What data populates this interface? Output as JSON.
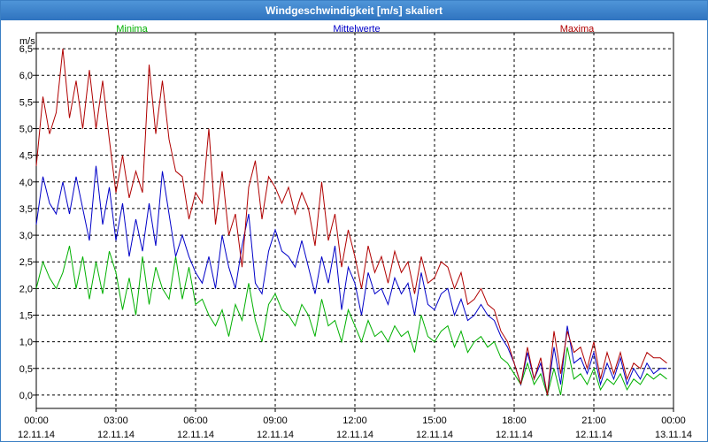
{
  "window": {
    "title": "Windgeschwindigkeit [m/s] skaliert"
  },
  "chart_data": {
    "type": "line",
    "title": "Windgeschwindigkeit [m/s] skaliert",
    "ylabel": "m/s",
    "xlabel": "",
    "ylim": [
      -0.25,
      6.8
    ],
    "yticks": [
      0.0,
      0.5,
      1.0,
      1.5,
      2.0,
      2.5,
      3.0,
      3.5,
      4.0,
      4.5,
      5.0,
      5.5,
      6.0,
      6.5
    ],
    "ytick_labels": [
      "0,0",
      "0,5",
      "1,0",
      "1,5",
      "2,0",
      "2,5",
      "3,0",
      "3,5",
      "4,0",
      "4,5",
      "5,0",
      "5,5",
      "6,0",
      "6,5"
    ],
    "xlim": [
      0,
      24
    ],
    "xticks": [
      0,
      3,
      6,
      9,
      12,
      15,
      18,
      21,
      24
    ],
    "xtick_labels": [
      [
        "00:00",
        "12.11.14"
      ],
      [
        "03:00",
        "12.11.14"
      ],
      [
        "06:00",
        "12.11.14"
      ],
      [
        "09:00",
        "12.11.14"
      ],
      [
        "12:00",
        "12.11.14"
      ],
      [
        "15:00",
        "12.11.14"
      ],
      [
        "18:00",
        "12.11.14"
      ],
      [
        "21:00",
        "12.11.14"
      ],
      [
        "00:00",
        "13.11.14"
      ]
    ],
    "grid": true,
    "legend_position": "top",
    "series": [
      {
        "name": "Minima",
        "color": "#00b000",
        "x": [
          0,
          0.25,
          0.5,
          0.75,
          1,
          1.25,
          1.5,
          1.75,
          2,
          2.25,
          2.5,
          2.75,
          3,
          3.25,
          3.5,
          3.75,
          4,
          4.25,
          4.5,
          4.75,
          5,
          5.25,
          5.5,
          5.75,
          6,
          6.25,
          6.5,
          6.75,
          7,
          7.25,
          7.5,
          7.75,
          8,
          8.25,
          8.5,
          8.75,
          9,
          9.25,
          9.5,
          9.75,
          10,
          10.25,
          10.5,
          10.75,
          11,
          11.25,
          11.5,
          11.75,
          12,
          12.25,
          12.5,
          12.75,
          13,
          13.25,
          13.5,
          13.75,
          14,
          14.25,
          14.5,
          14.75,
          15,
          15.25,
          15.5,
          15.75,
          16,
          16.25,
          16.5,
          16.75,
          17,
          17.25,
          17.5,
          17.75,
          18,
          18.25,
          18.5,
          18.75,
          19,
          19.25,
          19.5,
          19.75,
          20,
          20.25,
          20.5,
          20.75,
          21,
          21.25,
          21.5,
          21.75,
          22,
          22.25,
          22.5,
          22.75,
          23,
          23.25,
          23.5,
          23.75
        ],
        "values": [
          2.0,
          2.5,
          2.2,
          2.0,
          2.3,
          2.8,
          2.0,
          2.6,
          1.8,
          2.5,
          1.9,
          2.7,
          2.3,
          1.6,
          2.2,
          1.5,
          2.6,
          1.7,
          2.4,
          2.0,
          1.8,
          2.6,
          1.8,
          2.4,
          1.7,
          1.8,
          1.5,
          1.3,
          1.6,
          1.1,
          1.7,
          1.4,
          2.1,
          1.4,
          1.0,
          1.7,
          1.9,
          1.6,
          1.5,
          1.3,
          1.7,
          1.5,
          1.1,
          1.8,
          1.3,
          1.4,
          1.0,
          1.6,
          1.3,
          1.0,
          1.4,
          1.1,
          1.2,
          1.0,
          1.3,
          1.1,
          1.2,
          0.8,
          1.5,
          1.1,
          1.0,
          1.2,
          1.3,
          0.9,
          1.2,
          0.8,
          1.0,
          1.1,
          0.9,
          1.0,
          0.7,
          0.6,
          0.4,
          0.2,
          0.6,
          0.2,
          0.4,
          0.0,
          0.5,
          0.0,
          0.9,
          0.3,
          0.4,
          0.2,
          0.5,
          0.1,
          0.3,
          0.2,
          0.4,
          0.1,
          0.3,
          0.2,
          0.4,
          0.3,
          0.4,
          0.3
        ]
      },
      {
        "name": "Mittelwerte",
        "color": "#0000c8",
        "x": [
          0,
          0.25,
          0.5,
          0.75,
          1,
          1.25,
          1.5,
          1.75,
          2,
          2.25,
          2.5,
          2.75,
          3,
          3.25,
          3.5,
          3.75,
          4,
          4.25,
          4.5,
          4.75,
          5,
          5.25,
          5.5,
          5.75,
          6,
          6.25,
          6.5,
          6.75,
          7,
          7.25,
          7.5,
          7.75,
          8,
          8.25,
          8.5,
          8.75,
          9,
          9.25,
          9.5,
          9.75,
          10,
          10.25,
          10.5,
          10.75,
          11,
          11.25,
          11.5,
          11.75,
          12,
          12.25,
          12.5,
          12.75,
          13,
          13.25,
          13.5,
          13.75,
          14,
          14.25,
          14.5,
          14.75,
          15,
          15.25,
          15.5,
          15.75,
          16,
          16.25,
          16.5,
          16.75,
          17,
          17.25,
          17.5,
          17.75,
          18,
          18.25,
          18.5,
          18.75,
          19,
          19.25,
          19.5,
          19.75,
          20,
          20.25,
          20.5,
          20.75,
          21,
          21.25,
          21.5,
          21.75,
          22,
          22.25,
          22.5,
          22.75,
          23,
          23.25,
          23.5,
          23.75
        ],
        "values": [
          3.2,
          4.1,
          3.6,
          3.4,
          4.0,
          3.4,
          4.1,
          3.5,
          2.9,
          4.3,
          3.2,
          3.9,
          2.9,
          3.6,
          2.6,
          3.3,
          2.7,
          3.6,
          2.8,
          4.2,
          3.4,
          2.6,
          3.0,
          2.6,
          2.3,
          2.1,
          2.6,
          2.0,
          3.0,
          2.4,
          2.0,
          2.8,
          3.4,
          2.1,
          1.9,
          2.7,
          3.1,
          2.7,
          2.6,
          2.4,
          2.9,
          2.4,
          1.9,
          2.6,
          2.1,
          2.8,
          1.6,
          2.4,
          2.1,
          1.5,
          2.3,
          1.9,
          2.0,
          1.7,
          2.2,
          1.9,
          2.1,
          1.5,
          2.3,
          1.7,
          1.6,
          1.9,
          2.0,
          1.5,
          1.8,
          1.4,
          1.5,
          1.7,
          1.5,
          1.4,
          1.1,
          0.9,
          0.6,
          0.2,
          0.8,
          0.3,
          0.6,
          0.0,
          0.9,
          0.2,
          1.3,
          0.6,
          0.7,
          0.4,
          0.8,
          0.2,
          0.6,
          0.3,
          0.7,
          0.2,
          0.5,
          0.3,
          0.6,
          0.4,
          0.5,
          0.5
        ]
      },
      {
        "name": "Maxima",
        "color": "#b00000",
        "x": [
          0,
          0.25,
          0.5,
          0.75,
          1,
          1.25,
          1.5,
          1.75,
          2,
          2.25,
          2.5,
          2.75,
          3,
          3.25,
          3.5,
          3.75,
          4,
          4.25,
          4.5,
          4.75,
          5,
          5.25,
          5.5,
          5.75,
          6,
          6.25,
          6.5,
          6.75,
          7,
          7.25,
          7.5,
          7.75,
          8,
          8.25,
          8.5,
          8.75,
          9,
          9.25,
          9.5,
          9.75,
          10,
          10.25,
          10.5,
          10.75,
          11,
          11.25,
          11.5,
          11.75,
          12,
          12.25,
          12.5,
          12.75,
          13,
          13.25,
          13.5,
          13.75,
          14,
          14.25,
          14.5,
          14.75,
          15,
          15.25,
          15.5,
          15.75,
          16,
          16.25,
          16.5,
          16.75,
          17,
          17.25,
          17.5,
          17.75,
          18,
          18.25,
          18.5,
          18.75,
          19,
          19.25,
          19.5,
          19.75,
          20,
          20.25,
          20.5,
          20.75,
          21,
          21.25,
          21.5,
          21.75,
          22,
          22.25,
          22.5,
          22.75,
          23,
          23.25,
          23.5,
          23.75
        ],
        "values": [
          4.3,
          5.6,
          4.9,
          5.3,
          6.5,
          5.2,
          5.9,
          5.0,
          6.1,
          5.0,
          5.9,
          4.8,
          3.8,
          4.5,
          3.7,
          4.2,
          3.8,
          6.2,
          4.9,
          5.9,
          4.8,
          4.2,
          4.1,
          3.3,
          3.8,
          3.6,
          5.0,
          3.2,
          4.2,
          3.0,
          3.4,
          2.4,
          3.9,
          4.4,
          3.3,
          4.1,
          3.9,
          3.6,
          3.9,
          3.4,
          3.8,
          3.5,
          2.8,
          4.0,
          2.9,
          3.4,
          2.4,
          3.1,
          2.6,
          2.0,
          2.8,
          2.3,
          2.6,
          2.1,
          2.7,
          2.3,
          2.5,
          1.9,
          2.6,
          2.1,
          2.2,
          2.5,
          2.4,
          2.0,
          2.3,
          1.7,
          1.8,
          2.0,
          1.7,
          1.6,
          1.2,
          1.0,
          0.6,
          0.2,
          0.9,
          0.3,
          0.7,
          0.0,
          1.2,
          0.4,
          1.2,
          0.8,
          0.9,
          0.5,
          1.0,
          0.3,
          0.8,
          0.4,
          0.8,
          0.3,
          0.6,
          0.5,
          0.8,
          0.7,
          0.7,
          0.6
        ]
      }
    ]
  }
}
